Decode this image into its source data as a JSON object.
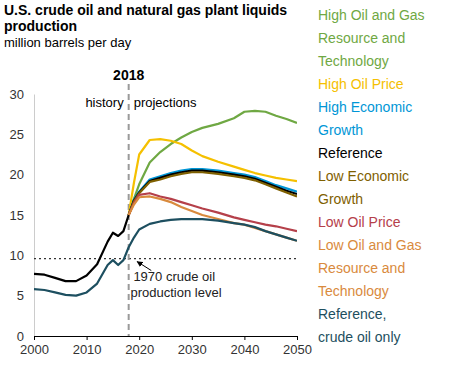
{
  "chart_data": {
    "type": "line",
    "title": "U.S. crude oil and natural gas plant liquids production",
    "subtitle": "million barrels per day",
    "x": [
      2000,
      2002,
      2004,
      2006,
      2008,
      2010,
      2012,
      2014,
      2015,
      2016,
      2017,
      2018,
      2019,
      2020,
      2022,
      2024,
      2026,
      2028,
      2030,
      2032,
      2035,
      2038,
      2040,
      2042,
      2044,
      2046,
      2048,
      2050
    ],
    "xlim": [
      2000,
      2050
    ],
    "xticks": [
      2000,
      2010,
      2020,
      2030,
      2040,
      2050
    ],
    "ylim": [
      0,
      30
    ],
    "yticks": [
      0,
      5,
      10,
      15,
      20,
      25,
      30
    ],
    "grid": false,
    "legend": "right",
    "series": [
      {
        "name": "High Oil and Gas Resource and Technology",
        "color": "#6fa843",
        "values": [
          null,
          null,
          null,
          null,
          null,
          null,
          null,
          null,
          null,
          null,
          null,
          15.0,
          17.0,
          18.8,
          21.5,
          22.8,
          23.8,
          24.6,
          25.3,
          25.8,
          26.3,
          27.0,
          27.8,
          27.9,
          27.8,
          27.3,
          26.9,
          26.4
        ]
      },
      {
        "name": "High Oil Price",
        "color": "#f5c000",
        "values": [
          null,
          null,
          null,
          null,
          null,
          null,
          null,
          null,
          null,
          null,
          null,
          15.0,
          19.0,
          22.5,
          24.3,
          24.4,
          24.2,
          23.8,
          23.0,
          22.3,
          21.6,
          21.0,
          20.6,
          20.2,
          19.9,
          19.6,
          19.4,
          19.2
        ]
      },
      {
        "name": "High Economic Growth",
        "color": "#0096d6",
        "values": [
          null,
          null,
          null,
          null,
          null,
          null,
          null,
          null,
          null,
          null,
          null,
          15.0,
          16.9,
          17.9,
          19.4,
          19.8,
          20.2,
          20.5,
          20.7,
          20.7,
          20.5,
          20.2,
          20.0,
          19.7,
          19.2,
          18.7,
          18.3,
          17.9
        ]
      },
      {
        "name": "Reference",
        "color": "#000000",
        "values": [
          7.7,
          7.6,
          7.2,
          6.8,
          6.8,
          7.5,
          8.9,
          11.7,
          12.8,
          12.4,
          13.0,
          15.0,
          16.8,
          17.8,
          19.2,
          19.6,
          20.0,
          20.3,
          20.5,
          20.5,
          20.3,
          20.0,
          19.8,
          19.5,
          19.0,
          18.5,
          18.0,
          17.6
        ]
      },
      {
        "name": "Low Economic Growth",
        "color": "#7f6000",
        "values": [
          null,
          null,
          null,
          null,
          null,
          null,
          null,
          null,
          null,
          null,
          null,
          15.0,
          16.7,
          17.7,
          19.1,
          19.4,
          19.8,
          20.1,
          20.3,
          20.3,
          20.1,
          19.8,
          19.6,
          19.3,
          18.8,
          18.3,
          17.8,
          17.3
        ]
      },
      {
        "name": "Low Oil Price",
        "color": "#b5404a",
        "values": [
          null,
          null,
          null,
          null,
          null,
          null,
          null,
          null,
          null,
          null,
          null,
          15.0,
          16.5,
          17.5,
          17.7,
          17.3,
          17.0,
          16.6,
          16.2,
          15.8,
          15.3,
          14.7,
          14.4,
          14.1,
          13.8,
          13.6,
          13.3,
          13.0
        ]
      },
      {
        "name": "Low Oil and Gas Resource and Technology",
        "color": "#d98a3d",
        "values": [
          null,
          null,
          null,
          null,
          null,
          null,
          null,
          null,
          null,
          null,
          null,
          15.0,
          16.3,
          17.2,
          17.3,
          17.0,
          16.6,
          16.0,
          15.5,
          15.0,
          14.5,
          14.0,
          13.8,
          13.4,
          13.0,
          12.6,
          12.2,
          11.8
        ]
      },
      {
        "name": "Reference, crude oil only",
        "color": "#1d4f60",
        "values": [
          5.8,
          5.7,
          5.4,
          5.1,
          5.0,
          5.4,
          6.5,
          8.8,
          9.4,
          8.8,
          9.4,
          11.0,
          12.2,
          13.2,
          13.9,
          14.2,
          14.4,
          14.5,
          14.5,
          14.5,
          14.3,
          14.0,
          13.8,
          13.5,
          13.0,
          12.6,
          12.2,
          11.8
        ]
      }
    ],
    "annotations": [
      {
        "kind": "vline",
        "x": 2018,
        "text": "2018",
        "left_text": "history",
        "right_text": "projections"
      },
      {
        "kind": "hline",
        "y": 9.6,
        "text": "1970 crude oil production level"
      }
    ]
  }
}
